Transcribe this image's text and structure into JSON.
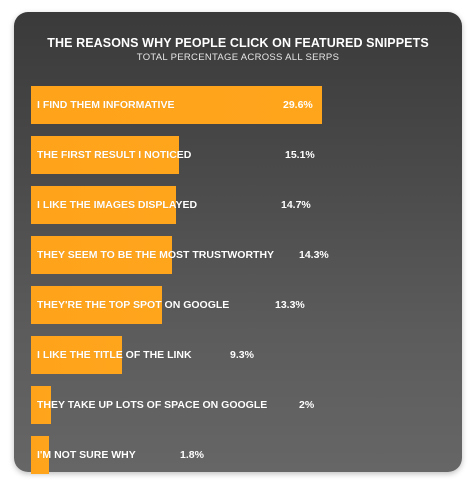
{
  "chart_data": {
    "type": "bar",
    "orientation": "horizontal",
    "title": "THE REASONS WHY PEOPLE CLICK ON FEATURED SNIPPETS",
    "subtitle": "TOTAL PERCENTAGE ACROSS ALL SERPS",
    "categories": [
      "I FIND THEM INFORMATIVE",
      "THE FIRST RESULT I NOTICED",
      "I LIKE THE IMAGES DISPLAYED",
      "THEY SEEM TO BE THE MOST TRUSTWORTHY",
      "THEY'RE THE TOP SPOT ON GOOGLE",
      "I LIKE THE TITLE OF THE LINK",
      "THEY TAKE UP LOTS OF SPACE ON GOOGLE",
      "I'M NOT SURE WHY"
    ],
    "values": [
      29.6,
      15.1,
      14.7,
      14.3,
      13.3,
      9.3,
      2,
      1.8
    ],
    "value_labels": [
      "29.6%",
      "15.1%",
      "14.7%",
      "14.3%",
      "13.3%",
      "9.3%",
      "2%",
      "1.8%"
    ],
    "xlim": [
      0,
      29.6
    ],
    "grid": false,
    "legend": "none",
    "bar_color": "#ffa31a",
    "background_color": "#4a4a4a",
    "text_color": "#ffffff"
  }
}
